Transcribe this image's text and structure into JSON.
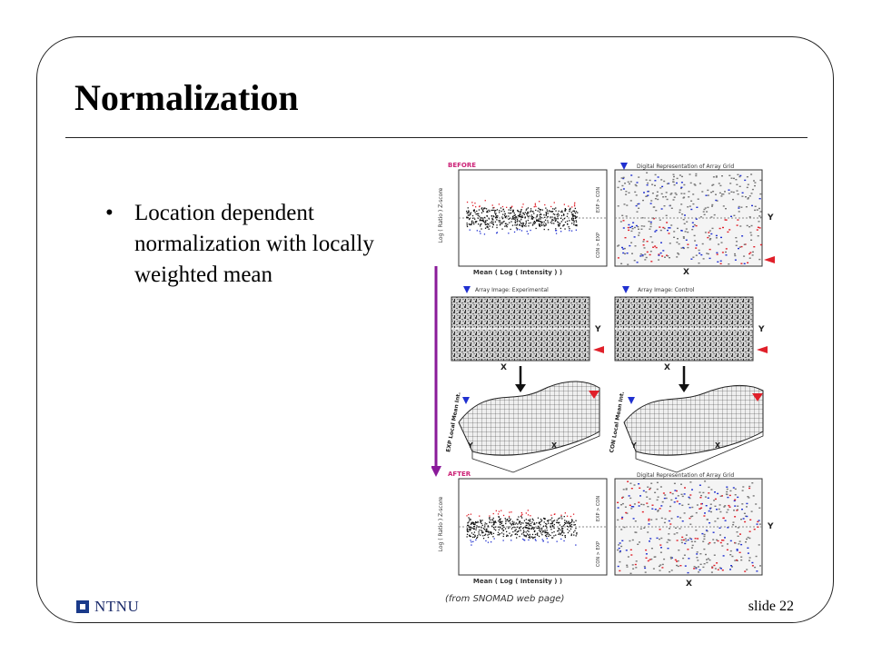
{
  "slide": {
    "title": "Normalization",
    "bullets": [
      "Location dependent normalization with locally weighted mean"
    ],
    "caption": "(from SNOMAD web page)",
    "logo_text": "NTNU",
    "slide_number": "slide 22"
  },
  "figure": {
    "before_label": "BEFORE",
    "after_label": "AFTER",
    "grid_title": "Digital Representation of Array Grid",
    "array_exp_title": "Array Image: Experimental",
    "array_con_title": "Array Image: Control",
    "ma_xlabel": "Mean ( Log ( Intensity ) )",
    "ma_ylabel": "Log ( Ratio ) Z-score",
    "exp_gt_con": "EXP > CON",
    "con_gt_exp": "CON > EXP",
    "axis_x": "X",
    "axis_y": "Y",
    "surface_exp_label": "EXP Local Mean Int.",
    "surface_con_label": "CON Local Mean Int.",
    "colors": {
      "red": "#e0202a",
      "blue": "#2030d0",
      "purple": "#8a1a9a",
      "label_pink": "#cc2277"
    }
  }
}
